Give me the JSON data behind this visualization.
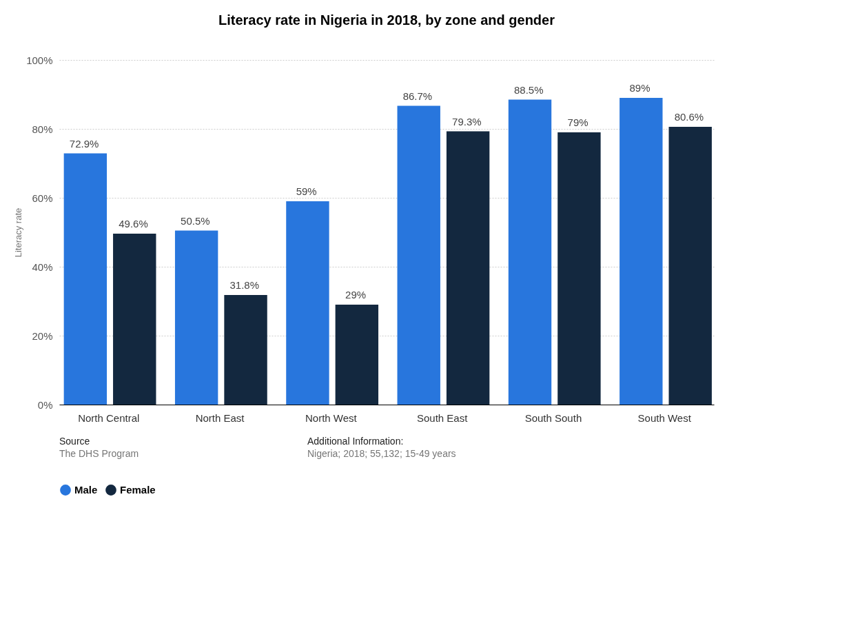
{
  "chart_data": {
    "type": "bar",
    "title": "Literacy rate in Nigeria in 2018, by zone and gender",
    "ylabel": "Literacy rate",
    "categories": [
      "North Central",
      "North East",
      "North West",
      "South East",
      "South South",
      "South West"
    ],
    "series": [
      {
        "name": "Male",
        "color": "#2876dd",
        "values": [
          72.9,
          50.5,
          59,
          86.7,
          88.5,
          89
        ],
        "value_labels": [
          "72.9%",
          "50.5%",
          "59%",
          "86.7%",
          "88.5%",
          "89%"
        ]
      },
      {
        "name": "Female",
        "color": "#13283f",
        "values": [
          49.6,
          31.8,
          29,
          79.3,
          79,
          80.6
        ],
        "value_labels": [
          "49.6%",
          "31.8%",
          "29%",
          "79.3%",
          "79%",
          "80.6%"
        ]
      }
    ],
    "ylim": [
      0,
      100
    ],
    "yticks": [
      {
        "value": 0,
        "label": "0%"
      },
      {
        "value": 20,
        "label": "20%"
      },
      {
        "value": 40,
        "label": "40%"
      },
      {
        "value": 60,
        "label": "60%"
      },
      {
        "value": 80,
        "label": "80%"
      },
      {
        "value": 100,
        "label": "100%"
      }
    ],
    "grid": "y",
    "legend": "bottom",
    "annotations": [
      "Source",
      "The DHS Program",
      "Additional Information:",
      "Nigeria; 2018; 55,132; 15-49 years"
    ]
  }
}
